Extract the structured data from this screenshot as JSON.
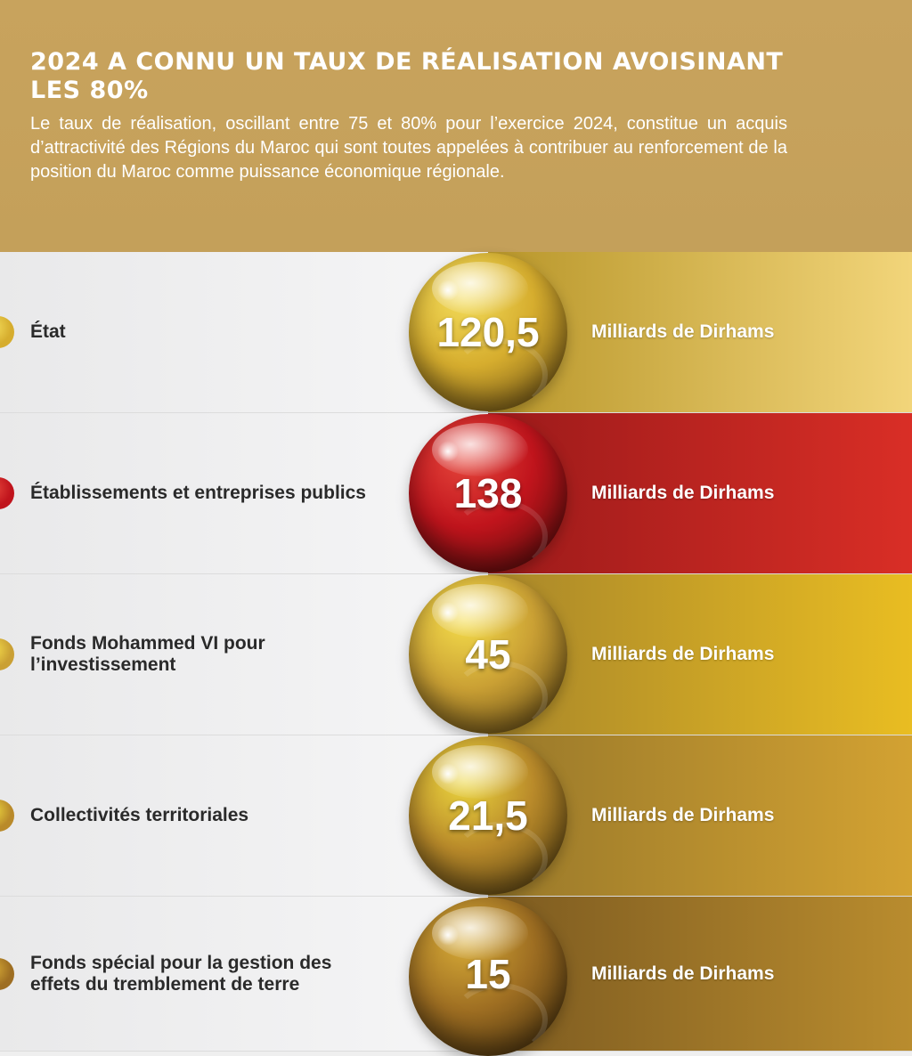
{
  "header": {
    "title": "2024 A CONNU UN TAUX DE RÉALISATION AVOISINANT LES 80%",
    "intro": "Le taux de réalisation, oscillant entre 75 et 80% pour l’exercice 2024, constitue un acquis d’attractivité des Régions du Maroc qui sont toutes appelées à contribuer au renforcement de la position du Maroc comme puissance économique régionale."
  },
  "rows": [
    {
      "label": "État",
      "value": "120,5",
      "unit": "Milliards de Dirhams",
      "bullet_color": "#d6ad2e",
      "band_from": "#b8962a",
      "band_to": "#f2d57a",
      "orb_light": "#f3dc5a",
      "orb_dark": "#6a4c14"
    },
    {
      "label": "Établissements et entreprises publics",
      "value": "138",
      "unit": "Milliards de Dirhams",
      "bullet_color": "#c0141c",
      "band_from": "#9b1a1a",
      "band_to": "#d92e26",
      "orb_light": "#e5453b",
      "orb_dark": "#4e0d0a"
    },
    {
      "label": "Fonds Mohammed VI pour l’investissement",
      "value": "45",
      "unit": "Milliards de Dirhams",
      "bullet_color": "#caa034",
      "band_from": "#a8862a",
      "band_to": "#e9bd22",
      "orb_light": "#f4dc4a",
      "orb_dark": "#5e4412"
    },
    {
      "label": "Collectivités territoriales",
      "value": "21,5",
      "unit": "Milliards de Dirhams",
      "bullet_color": "#b98a2a",
      "band_from": "#98782a",
      "band_to": "#d3a232",
      "orb_light": "#ecd63e",
      "orb_dark": "#4e3a10"
    },
    {
      "label": "Fonds spécial pour la gestion des effets du tremblement de terre",
      "value": "15",
      "unit": "Milliards de Dirhams",
      "bullet_color": "#9e6e22",
      "band_from": "#7c5a20",
      "band_to": "#b98c2e",
      "orb_light": "#d6aa36",
      "orb_dark": "#3e2a0c"
    }
  ]
}
